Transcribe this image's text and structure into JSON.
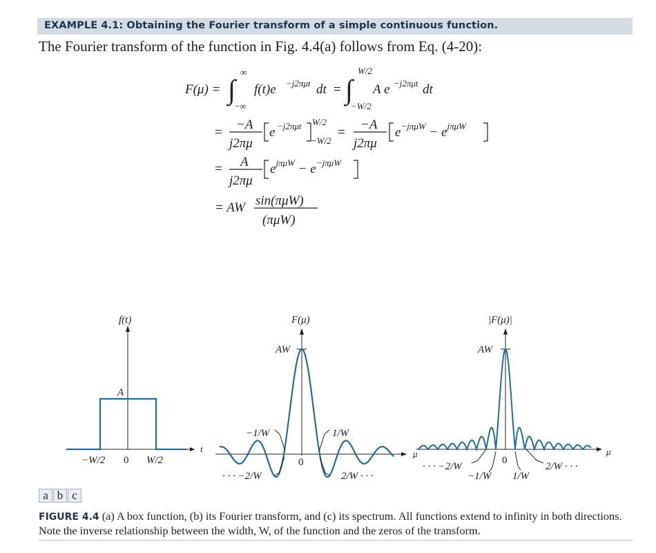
{
  "example": {
    "heading": "EXAMPLE 4.1: Obtaining the Fourier transform of a simple continuous function.",
    "intro": "The Fourier transform of the function in Fig. 4.4(a) follows from Eq. (4-20):"
  },
  "equation": {
    "line1_lhs": "F(μ) =",
    "line1_int1_upper": "∞",
    "line1_int1_lower": "−∞",
    "line1_int1_body": "f(t)e",
    "exponent": "−j2πμt",
    "dt": "dt",
    "equals": "=",
    "line1_int2_upper": "W/2",
    "line1_int2_lower": "−W/2",
    "line1_int2_body": "A e",
    "line2_num1": "−A",
    "line2_den1": "j2πμ",
    "line2_bracket1": "e",
    "line2_limit_upper": "W/2",
    "line2_limit_lower": "−W/2",
    "line2_num2": "−A",
    "line2_den2": "j2πμ",
    "line2_bracket2": "e−jπμW − ejπμW",
    "line3_num": "A",
    "line3_den": "j2πμ",
    "line3_bracket": "ejπμW − e−jπμW",
    "line4_prefix": "= AW",
    "line4_num": "sin(πμW)",
    "line4_den": "(πμW)"
  },
  "figure": {
    "panel_a": {
      "ylabel": "f(t)",
      "height_label": "A",
      "x_axis_label": "t",
      "ticks": [
        "−W/2",
        "0",
        "W/2"
      ]
    },
    "panel_b": {
      "ylabel": "F(μ)",
      "peak_label": "AW",
      "x_axis_label": "μ",
      "zero_label": "0",
      "ann_left_top": "−1/W",
      "ann_right_top": "1/W",
      "ann_left_bottom": "· · · −2/W",
      "ann_right_bottom": "2/W · · ·"
    },
    "panel_c": {
      "ylabel": "|F(μ)|",
      "peak_label": "AW",
      "x_axis_label": "μ",
      "zero_label": "0",
      "ann_left_outer": "· · · −2/W",
      "ann_left_inner": "−1/W",
      "ann_right_inner": "1/W",
      "ann_right_outer": "2/W · · ·"
    },
    "curve_color": "#1f6f9e",
    "panel_labels": [
      "a",
      "b",
      "c"
    ]
  },
  "caption": {
    "label": "FIGURE 4.4",
    "text": " (a) A box function, (b) its Fourier transform, and (c) its spectrum. All functions extend to infinity in both directions. Note the inverse relationship between the width, W, of the function and the zeros of the transform."
  }
}
